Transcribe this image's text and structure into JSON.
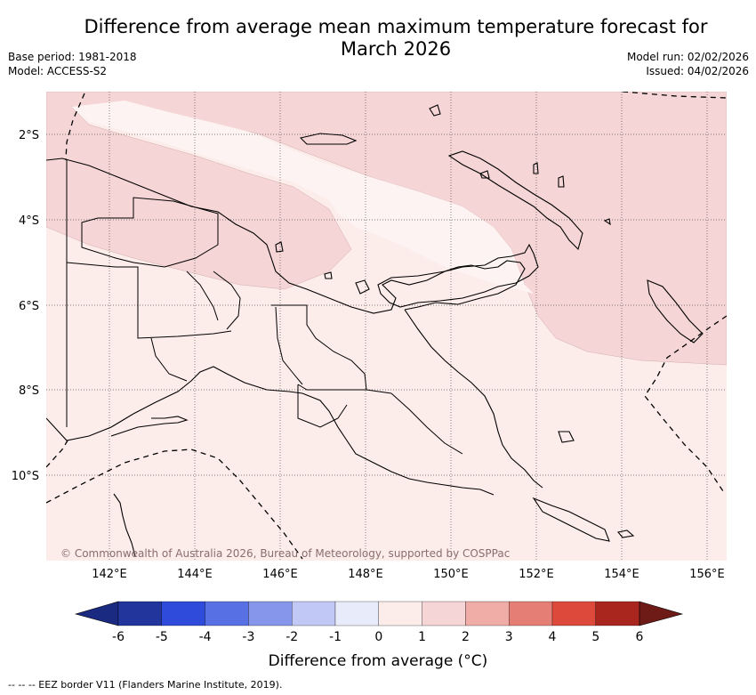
{
  "title": "Difference from average mean maximum temperature forecast for March 2026",
  "meta": {
    "base_period": "Base period: 1981-2018",
    "model": "Model: ACCESS-S2",
    "model_run": "Model run: 02/02/2026",
    "issued": "Issued: 04/02/2026"
  },
  "map": {
    "lat_labels": [
      "2°S",
      "4°S",
      "6°S",
      "8°S",
      "10°S"
    ],
    "lon_labels": [
      "142°E",
      "144°E",
      "146°E",
      "148°E",
      "150°E",
      "152°E",
      "154°E",
      "156°E"
    ],
    "attribution": "© Commonwealth of Australia 2026, Bureau of Meteorology, supported by COSPPac"
  },
  "colorbar": {
    "ticks": [
      "-6",
      "-5",
      "-4",
      "-3",
      "-2",
      "-1",
      "0",
      "1",
      "2",
      "3",
      "4",
      "5",
      "6"
    ],
    "colors": [
      "#22359c",
      "#2e4bdb",
      "#5770e3",
      "#8696ea",
      "#c1c8f5",
      "#e8ebfa",
      "#fcecea",
      "#f5d5d5",
      "#f0aca6",
      "#e57f75",
      "#dd4a3c",
      "#a8261e"
    ],
    "under_color": "#1a2a80",
    "over_color": "#6e1b17",
    "label": "Difference from average (°C)"
  },
  "footnote": "--  --  -- EEZ border V11 (Flanders Marine Institute, 2019).",
  "colors": {
    "anomaly_0_1": "#fcecea",
    "anomaly_1_2": "#f5d5d5",
    "anomaly_pale": "#fdf3f2"
  }
}
